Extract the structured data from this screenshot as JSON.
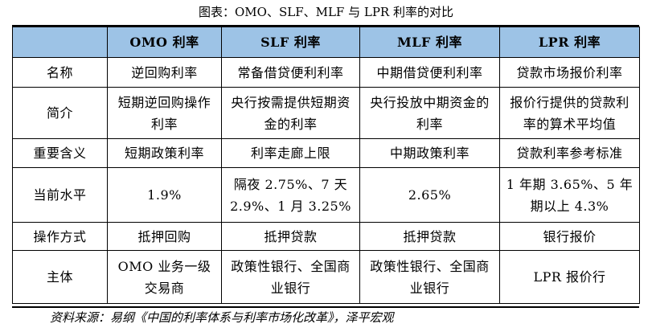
{
  "caption": "图表：OMO、SLF、MLF 与 LPR 利率的对比",
  "table": {
    "headers": [
      "",
      "OMO 利率",
      "SLF 利率",
      "MLF 利率",
      "LPR 利率"
    ],
    "rows": [
      {
        "label": "名称",
        "cells": [
          "逆回购利率",
          "常备借贷便利利率",
          "中期借贷便利利率",
          "贷款市场报价利率"
        ]
      },
      {
        "label": "简介",
        "cells": [
          "短期逆回购操作利率",
          "央行按需提供短期资金的利率",
          "央行投放中期资金的利率",
          "报价行提供的贷款利率的算术平均值"
        ]
      },
      {
        "label": "重要含义",
        "cells": [
          "短期政策利率",
          "利率走廊上限",
          "中期政策利率",
          "贷款利率参考标准"
        ]
      },
      {
        "label": "当前水平",
        "cells": [
          "1.9%",
          "隔夜 2.75%、7 天 2.9%、1 月 3.25%",
          "2.65%",
          "1 年期 3.65%、5 年期以上 4.3%"
        ]
      },
      {
        "label": "操作方式",
        "cells": [
          "抵押回购",
          "抵押贷款",
          "抵押贷款",
          "银行报价"
        ]
      },
      {
        "label": "主体",
        "cells": [
          "OMO 业务一级交易商",
          "政策性银行、全国商业银行",
          "政策性银行、全国商业银行",
          "LPR 报价行"
        ]
      }
    ]
  },
  "source": "资料来源：易纲《中国的利率体系与利率市场化改革》，泽平宏观"
}
